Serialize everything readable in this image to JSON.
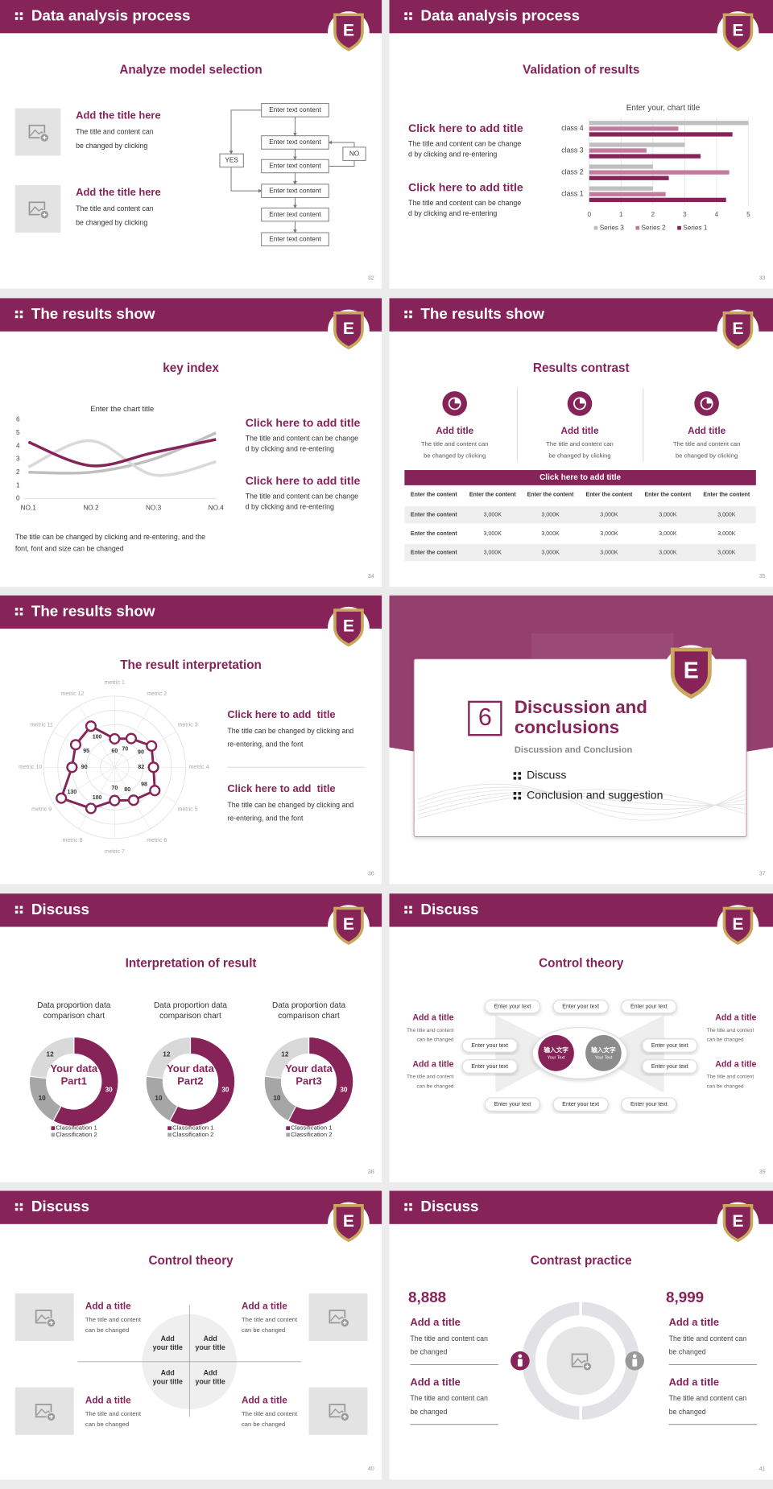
{
  "slides": [
    {
      "header": "Data analysis process",
      "logo": "E",
      "title": "Analyze model selection",
      "items": [
        {
          "title": "Add the title here",
          "text": [
            "The title and content can",
            "be changed by clicking"
          ]
        },
        {
          "title": "Add the title here",
          "text": [
            "The title and content can",
            "be changed by clicking"
          ]
        }
      ],
      "flow": {
        "steps": [
          "Enter text content",
          "Enter text content",
          "Enter text content",
          "Enter text content",
          "Enter text content",
          "Enter text content"
        ],
        "yes": "YES",
        "no": "NO"
      },
      "page": "32"
    },
    {
      "header": "Data analysis process",
      "logo": "E",
      "title": "Validation of results",
      "items": [
        {
          "title": "Click here to add title",
          "text": [
            "The title and content can be change",
            "d by clicking and re-entering"
          ]
        },
        {
          "title": "Click here to add title",
          "text": [
            "The title and content can be change",
            "d by clicking and re-entering"
          ]
        }
      ],
      "chart_data": {
        "type": "bar",
        "title": "Enter your, chart title",
        "categories": [
          "class 1",
          "class 2",
          "class 3",
          "class 4"
        ],
        "series": [
          {
            "name": "Series 3",
            "color": "#bfbfbf",
            "values": [
              2,
              2,
              3,
              5
            ]
          },
          {
            "name": "Series 2",
            "color": "#c47a9f",
            "values": [
              2.4,
              4.4,
              1.8,
              2.8
            ]
          },
          {
            "name": "Series 1",
            "color": "#86245a",
            "values": [
              4.3,
              2.5,
              3.5,
              4.5
            ]
          }
        ],
        "xlim": [
          0,
          5
        ],
        "xticks": [
          0,
          1,
          2,
          3,
          4,
          5
        ],
        "grid": true,
        "legend": "bottom"
      },
      "page": "33"
    },
    {
      "header": "The results show",
      "logo": "E",
      "title": "key index",
      "chart_data": {
        "type": "line",
        "title": "Enter the chart title",
        "categories": [
          "NO.1",
          "NO.2",
          "NO.3",
          "NO.4"
        ],
        "series": [
          {
            "color": "#86245a",
            "values": [
              4.3,
              2.5,
              3.5,
              4.5
            ]
          },
          {
            "color": "#d9d9d9",
            "values": [
              2.4,
              4.4,
              1.8,
              2.8
            ]
          },
          {
            "color": "#bfbfbf",
            "values": [
              2,
              2,
              3,
              5
            ]
          }
        ],
        "ylim": [
          0,
          6
        ],
        "yticks": [
          0,
          1,
          2,
          3,
          4,
          5,
          6
        ],
        "grid": false,
        "smooth": true
      },
      "items": [
        {
          "title": "Click here to add title",
          "text": [
            "The title and content can be change",
            "d by clicking and re-entering"
          ]
        },
        {
          "title": "Click here to add title",
          "text": [
            "The title and content can be change",
            "d by clicking and re-entering"
          ]
        }
      ],
      "note": [
        "The title can be changed by clicking and re-entering, and the",
        "font, font and size can be changed"
      ],
      "page": "34"
    },
    {
      "header": "The results show",
      "logo": "E",
      "title": "Results contrast",
      "columns": [
        {
          "title": "Add title",
          "text": [
            "The title and content can",
            "be changed by clicking"
          ]
        },
        {
          "title": "Add title",
          "text": [
            "The title and content can",
            "be changed by clicking"
          ]
        },
        {
          "title": "Add title",
          "text": [
            "The title and content can",
            "be changed by clicking"
          ]
        }
      ],
      "table": {
        "caption": "Click here to add title",
        "header": [
          "Enter the content",
          "Enter the content",
          "Enter the content",
          "Enter the content",
          "Enter the content",
          "Enter the content"
        ],
        "rows": [
          [
            "Enter the content",
            "3,000K",
            "3,000K",
            "3,000K",
            "3,000K",
            "3,000K"
          ],
          [
            "Enter the content",
            "3,000K",
            "3,000K",
            "3,000K",
            "3,000K",
            "3,000K"
          ],
          [
            "Enter the content",
            "3,000K",
            "3,000K",
            "3,000K",
            "3,000K",
            "3,000K"
          ]
        ]
      },
      "page": "35"
    },
    {
      "header": "The results show",
      "logo": "E",
      "title": "The result interpretation",
      "chart_data": {
        "type": "radar",
        "categories": [
          "metric 1",
          "metric 2",
          "metric 3",
          "metric 4",
          "metric 5",
          "metric 6",
          "metric 7",
          "metric 8",
          "metric 9",
          "metric 10",
          "metric 11",
          "metric 12"
        ],
        "values": [
          60,
          70,
          90,
          82,
          98,
          80,
          70,
          100,
          130,
          90,
          95,
          100
        ],
        "color": "#86245a",
        "rlim": [
          0,
          150
        ],
        "rticks": [
          30,
          60,
          90,
          120,
          150
        ]
      },
      "items": [
        {
          "title": "Click here to add  title",
          "text": [
            "The title can be changed by clicking and",
            "re-entering, and the font"
          ]
        },
        {
          "title": "Click here to add  title",
          "text": [
            "The title can be changed by clicking and",
            "re-entering, and the font"
          ]
        }
      ],
      "page": "36"
    },
    {
      "logo": "E",
      "number": "6",
      "title": [
        "Discussion and",
        "conclusions"
      ],
      "subtitle": "Discussion and Conclusion",
      "bullets": [
        "Discuss",
        "Conclusion and suggestion"
      ],
      "page": "37"
    },
    {
      "header": "Discuss",
      "logo": "E",
      "title": "Interpretation of result",
      "charts": [
        {
          "type": "donut",
          "title": [
            "Data proportion data",
            "comparison chart"
          ],
          "center": [
            "Your data",
            "Part1"
          ],
          "categories": [
            "Classification 1",
            "Classification 2",
            null
          ],
          "values": [
            30,
            10,
            12
          ],
          "colors": [
            "#86245a",
            "#a6a6a6",
            "#d9d9d9"
          ]
        },
        {
          "type": "donut",
          "title": [
            "Data proportion data",
            "comparison chart"
          ],
          "center": [
            "Your data",
            "Part2"
          ],
          "categories": [
            "Classification 1",
            "Classification 2",
            null
          ],
          "values": [
            30,
            10,
            12
          ],
          "colors": [
            "#86245a",
            "#a6a6a6",
            "#d9d9d9"
          ]
        },
        {
          "type": "donut",
          "title": [
            "Data proportion data",
            "comparison chart"
          ],
          "center": [
            "Your data",
            "Part3"
          ],
          "categories": [
            "Classification 1",
            "Classification 2",
            null
          ],
          "values": [
            30,
            10,
            12
          ],
          "colors": [
            "#86245a",
            "#a6a6a6",
            "#d9d9d9"
          ]
        }
      ],
      "page": "38"
    },
    {
      "header": "Discuss",
      "logo": "E",
      "title": "Control theory",
      "centers": [
        {
          "cn": "输入文字",
          "en": "Your Text"
        },
        {
          "cn": "输入文字",
          "en": "Your Text"
        }
      ],
      "pills": [
        "Enter your text",
        "Enter your text",
        "Enter your text",
        "Enter your text",
        "Enter your text",
        "Enter your text",
        "Enter your text",
        "Enter your text",
        "Enter your text",
        "Enter your text"
      ],
      "sides": [
        {
          "title": "Add a title",
          "text": [
            "The title and content",
            "can be changed"
          ]
        },
        {
          "title": "Add a title",
          "text": [
            "The title and content",
            "can be changed"
          ]
        },
        {
          "title": "Add a title",
          "text": [
            "The title and content",
            "can be changed"
          ]
        },
        {
          "title": "Add a title",
          "text": [
            "The title and content",
            "can be changed"
          ]
        }
      ],
      "page": "39"
    },
    {
      "header": "Discuss",
      "logo": "E",
      "title": "Control theory",
      "items": [
        {
          "title": "Add a title",
          "text": [
            "The title and content",
            "can be changed"
          ]
        },
        {
          "title": "Add a title",
          "text": [
            "The title and content",
            "can be changed"
          ]
        },
        {
          "title": "Add a title",
          "text": [
            "The title and content",
            "can be changed"
          ]
        },
        {
          "title": "Add a title",
          "text": [
            "The title and content",
            "can be changed"
          ]
        }
      ],
      "quadrants": [
        [
          "Add",
          "your title"
        ],
        [
          "Add",
          "your title"
        ],
        [
          "Add",
          "your title"
        ],
        [
          "Add",
          "your title"
        ]
      ],
      "page": "40"
    },
    {
      "header": "Discuss",
      "logo": "E",
      "title": "Contrast practice",
      "stats": [
        "8,888",
        "8,999"
      ],
      "items": [
        {
          "title": "Add a title",
          "text": [
            "The title and content can",
            "be changed"
          ]
        },
        {
          "title": "Add a title",
          "text": [
            "The title and content can",
            "be changed"
          ]
        },
        {
          "title": "Add a title",
          "text": [
            "The title and content can",
            "be changed"
          ]
        },
        {
          "title": "Add a title",
          "text": [
            "The title and content can",
            "be changed"
          ]
        }
      ],
      "page": "41"
    }
  ]
}
